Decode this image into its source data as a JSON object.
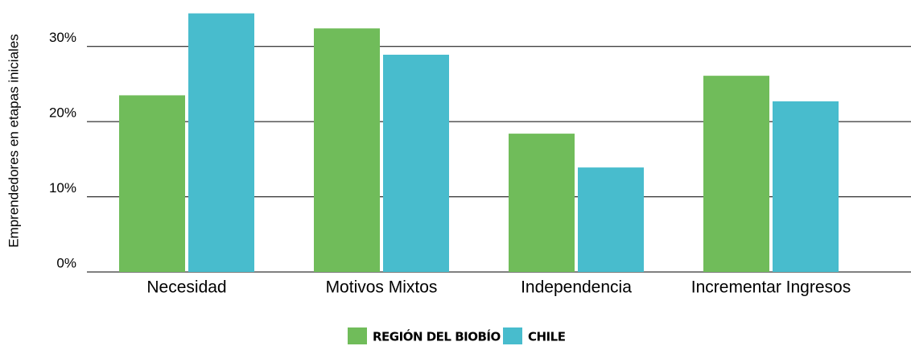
{
  "chart_data": {
    "type": "bar",
    "y_label": "Emprendedores en etapas iniciales",
    "categories": [
      "Necesidad",
      "Motivos Mixtos",
      "Independencia",
      "Incrementar Ingresos"
    ],
    "series": [
      {
        "name": "REGIÓN DEL BIOBÍO",
        "color": "#70bc5a",
        "values": [
          23.5,
          32.4,
          18.4,
          26.1
        ]
      },
      {
        "name": "CHILE",
        "color": "#48bccd",
        "values": [
          34.4,
          28.9,
          13.9,
          22.7
        ]
      }
    ],
    "ylim": [
      0,
      35
    ],
    "yticks": [
      {
        "value": 0,
        "label": "0%"
      },
      {
        "value": 10,
        "label": "10%"
      },
      {
        "value": 20,
        "label": "20%"
      },
      {
        "value": 30,
        "label": "30%"
      }
    ],
    "grid": true,
    "legend": "bottom"
  }
}
